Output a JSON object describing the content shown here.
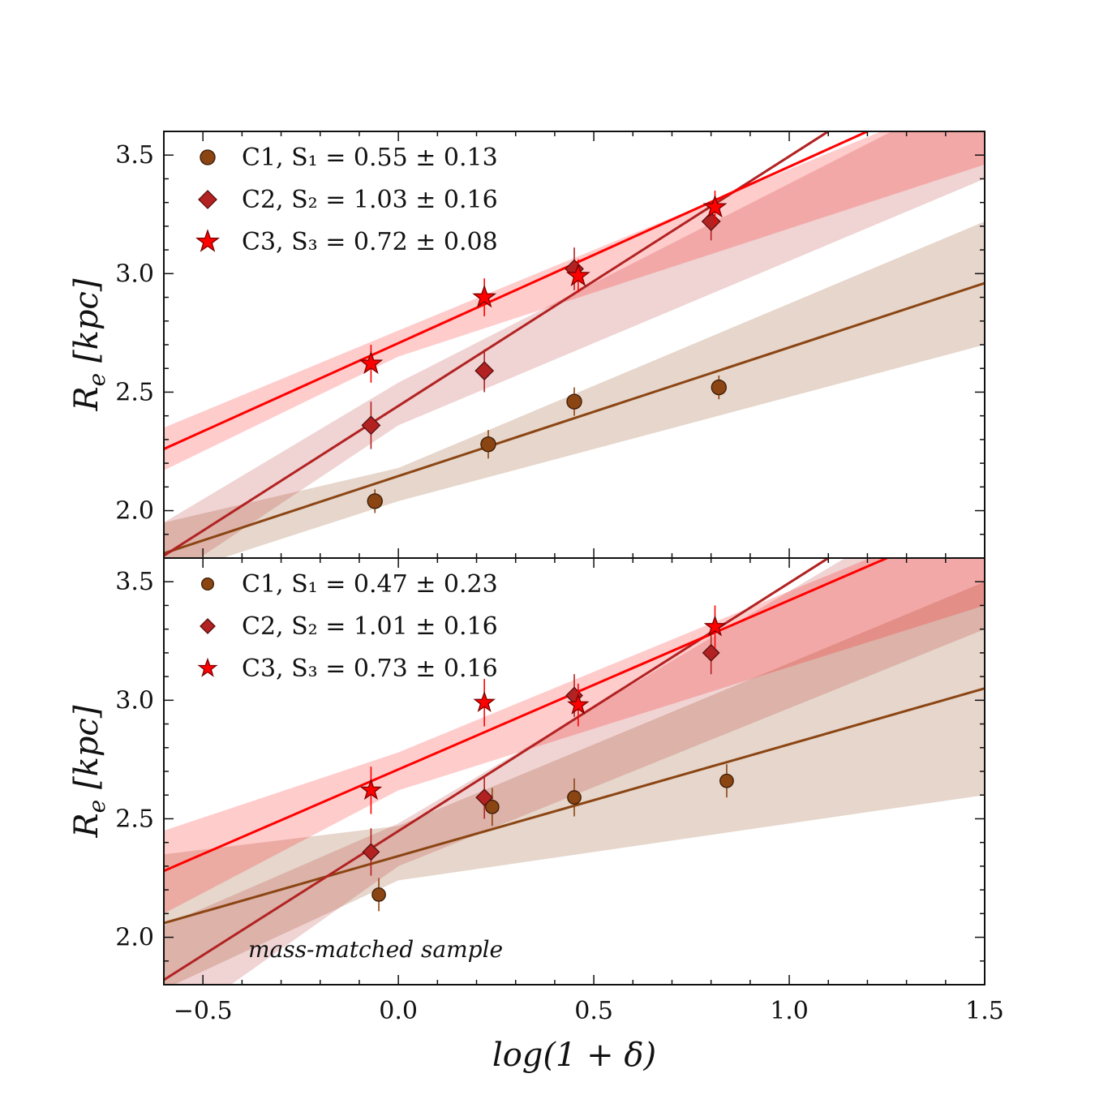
{
  "chart_data": [
    {
      "type": "scatter",
      "panel": "top",
      "xlabel": "log(1 + δ)",
      "ylabel": "R_e [kpc]",
      "xlim": [
        -0.6,
        1.5
      ],
      "ylim": [
        1.8,
        3.6
      ],
      "yticks": [
        2.0,
        2.5,
        3.0,
        3.5
      ],
      "ytick_labels": [
        "2.0",
        "2.5",
        "3.0",
        "3.5"
      ],
      "legend_position": "top-left",
      "series": [
        {
          "name": "C1, S₁ = 0.55 ± 0.13",
          "name_html": "C1,&#8194;S<tspan dy='7' font-size='21'>1</tspan><tspan dy='-7'> = 0.55 ± 0.13</tspan>",
          "marker": "circle",
          "color": "#8B4513",
          "x": [
            -0.06,
            0.23,
            0.45,
            0.82
          ],
          "y": [
            2.04,
            2.28,
            2.46,
            2.52
          ],
          "yerr": [
            0.05,
            0.06,
            0.06,
            0.05
          ],
          "fit": {
            "x": [
              -0.6,
              1.5
            ],
            "y": [
              1.82,
              2.96
            ]
          },
          "band": {
            "lower": [
              1.72,
              2.7
            ],
            "upper": [
              1.95,
              3.22
            ],
            "pivot_x": 0.0,
            "pivot_lower": 2.04,
            "pivot_upper": 2.18
          }
        },
        {
          "name": "C2, S₂ = 1.03 ± 0.16",
          "marker": "diamond",
          "color": "#B22222",
          "x": [
            -0.07,
            0.22,
            0.45,
            0.8
          ],
          "y": [
            2.36,
            2.59,
            3.02,
            3.22
          ],
          "yerr": [
            0.1,
            0.09,
            0.09,
            0.08
          ],
          "fit": {
            "x": [
              -0.6,
              1.1
            ],
            "y": [
              1.81,
              3.6
            ]
          },
          "band": {
            "lower": [
              1.7,
              3.4
            ],
            "upper": [
              1.95,
              3.8
            ],
            "pivot_x": 0.0,
            "pivot_lower": 2.36,
            "pivot_upper": 2.54
          }
        },
        {
          "name": "C3, S₃ = 0.72 ± 0.08",
          "marker": "star",
          "color": "#FF0000",
          "x": [
            -0.07,
            0.22,
            0.46,
            0.81
          ],
          "y": [
            2.62,
            2.9,
            2.99,
            3.28
          ],
          "yerr": [
            0.08,
            0.08,
            0.07,
            0.07
          ],
          "fit": {
            "x": [
              -0.6,
              1.2
            ],
            "y": [
              2.26,
              3.6
            ]
          },
          "band": {
            "lower": [
              2.17,
              3.46
            ],
            "upper": [
              2.35,
              3.78
            ],
            "pivot_x": 0.0,
            "pivot_lower": 2.65,
            "pivot_upper": 2.76
          }
        }
      ]
    },
    {
      "type": "scatter",
      "panel": "bottom",
      "xlabel": "log(1 + δ)",
      "ylabel": "R_e [kpc]",
      "xlim": [
        -0.6,
        1.5
      ],
      "ylim": [
        1.8,
        3.6
      ],
      "xticks": [
        -0.5,
        0.0,
        0.5,
        1.0,
        1.5
      ],
      "xtick_labels": [
        "−0.5",
        "0.0",
        "0.5",
        "1.0",
        "1.5"
      ],
      "yticks": [
        2.0,
        2.5,
        3.0,
        3.5
      ],
      "ytick_labels": [
        "2.0",
        "2.5",
        "3.0",
        "3.5"
      ],
      "legend_position": "top-left",
      "annotation": "mass-matched sample",
      "series": [
        {
          "name": "C1, S₁ = 0.47 ± 0.23",
          "marker": "circle",
          "color": "#8B4513",
          "x": [
            -0.05,
            0.24,
            0.45,
            0.84
          ],
          "y": [
            2.18,
            2.55,
            2.59,
            2.66
          ],
          "yerr": [
            0.07,
            0.08,
            0.08,
            0.07
          ],
          "fit": {
            "x": [
              -0.6,
              1.5
            ],
            "y": [
              2.06,
              3.05
            ]
          },
          "band": {
            "lower": [
              1.78,
              2.6
            ],
            "upper": [
              2.35,
              3.5
            ],
            "pivot_x": 0.0,
            "pivot_lower": 2.24,
            "pivot_upper": 2.47
          }
        },
        {
          "name": "C2, S₂ = 1.01 ± 0.16",
          "marker": "diamond",
          "color": "#B22222",
          "x": [
            -0.07,
            0.22,
            0.45,
            0.8
          ],
          "y": [
            2.36,
            2.59,
            3.02,
            3.2
          ],
          "yerr": [
            0.1,
            0.09,
            0.09,
            0.09
          ],
          "fit": {
            "x": [
              -0.6,
              1.1
            ],
            "y": [
              1.82,
              3.6
            ]
          },
          "band": {
            "lower": [
              1.6,
              3.3
            ],
            "upper": [
              2.05,
              3.95
            ],
            "pivot_x": 0.0,
            "pivot_lower": 2.3,
            "pivot_upper": 2.48
          }
        },
        {
          "name": "C3, S₃ = 0.73 ± 0.16",
          "marker": "star",
          "color": "#FF0000",
          "x": [
            -0.07,
            0.22,
            0.46,
            0.81
          ],
          "y": [
            2.62,
            2.99,
            2.98,
            3.31
          ],
          "yerr": [
            0.1,
            0.1,
            0.09,
            0.09
          ],
          "fit": {
            "x": [
              -0.6,
              1.25
            ],
            "y": [
              2.28,
              3.6
            ]
          },
          "band": {
            "lower": [
              2.1,
              3.4
            ],
            "upper": [
              2.45,
              3.8
            ],
            "pivot_x": 0.0,
            "pivot_lower": 2.62,
            "pivot_upper": 2.78
          }
        }
      ]
    }
  ]
}
